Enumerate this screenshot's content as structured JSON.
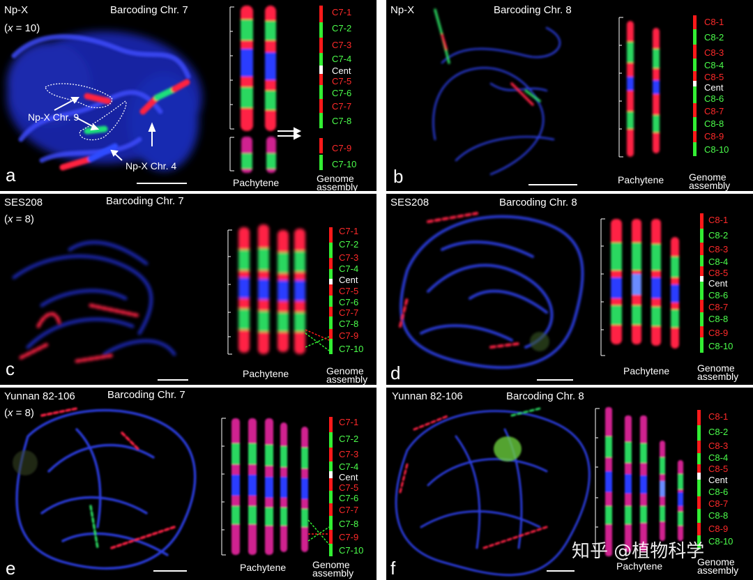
{
  "panels": {
    "a": {
      "strain": "Np-X",
      "ploidy_open": "(",
      "ploidy_x": "x",
      "ploidy_rest": " = 10)",
      "title": "Barcoding Chr. 7",
      "letter": "a",
      "pachytene": "Pachytene",
      "genome1": "Genome",
      "genome2": "assembly",
      "labels": [
        "C7-1",
        "C7-2",
        "C7-3",
        "C7-4",
        "Cent",
        "C7-5",
        "C7-6",
        "C7-7",
        "C7-8",
        "C7-9",
        "C7-10"
      ],
      "annotations": [
        "Np-X Chr. 9",
        "Np-X Chr. 4"
      ]
    },
    "b": {
      "strain": "Np-X",
      "title": "Barcoding Chr. 8",
      "letter": "b",
      "pachytene": "Pachytene",
      "genome1": "Genome",
      "genome2": "assembly",
      "labels": [
        "C8-1",
        "C8-2",
        "C8-3",
        "C8-4",
        "C8-5",
        "Cent",
        "C8-6",
        "C8-7",
        "C8-8",
        "C8-9",
        "C8-10"
      ]
    },
    "c": {
      "strain": "SES208",
      "ploidy_open": "(",
      "ploidy_x": "x",
      "ploidy_rest": " = 8)",
      "title": "Barcoding Chr. 7",
      "letter": "c",
      "pachytene": "Pachytene",
      "genome1": "Genome",
      "genome2": "assembly",
      "labels": [
        "C7-1",
        "C7-2",
        "C7-3",
        "C7-4",
        "Cent",
        "C7-5",
        "C7-6",
        "C7-7",
        "C7-8",
        "C7-9",
        "C7-10"
      ]
    },
    "d": {
      "strain": "SES208",
      "title": "Barcoding Chr. 8",
      "letter": "d",
      "pachytene": "Pachytene",
      "genome1": "Genome",
      "genome2": "assembly",
      "labels": [
        "C8-1",
        "C8-2",
        "C8-3",
        "C8-4",
        "C8-5",
        "Cent",
        "C8-6",
        "C8-7",
        "C8-8",
        "C8-9",
        "C8-10"
      ]
    },
    "e": {
      "strain": "Yunnan 82-106",
      "ploidy_open": "(",
      "ploidy_x": "x",
      "ploidy_rest": " = 8)",
      "title": "Barcoding Chr. 7",
      "letter": "e",
      "pachytene": "Pachytene",
      "genome1": "Genome",
      "genome2": "assembly",
      "labels": [
        "C7-1",
        "C7-2",
        "C7-3",
        "C7-4",
        "Cent",
        "C7-5",
        "C7-6",
        "C7-7",
        "C7-8",
        "C7-9",
        "C7-10"
      ]
    },
    "f": {
      "strain": "Yunnan 82-106",
      "title": "Barcoding Chr. 8",
      "letter": "f",
      "pachytene": "Pachytene",
      "genome1": "Genome",
      "genome2": "assembly",
      "labels": [
        "C8-1",
        "C8-2",
        "C8-3",
        "C8-4",
        "C8-5",
        "Cent",
        "C8-6",
        "C8-7",
        "C8-8",
        "C8-9",
        "C8-10"
      ]
    }
  },
  "watermark": "知乎 @植物科学",
  "colors": {
    "red": "#ff2a2a",
    "green": "#4cff4c",
    "white": "#ffffff",
    "dapi": "#2a3cff",
    "background": "#000000"
  }
}
